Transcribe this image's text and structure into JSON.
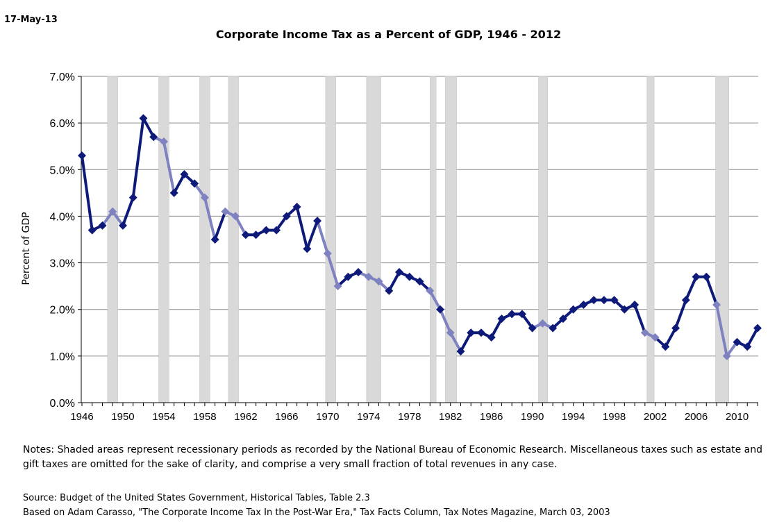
{
  "date_stamp": "17-May-13",
  "chart_data": {
    "type": "line",
    "title": "Corporate Income Tax as a Percent of GDP, 1946 - 2012",
    "ylabel": "Percent of GDP",
    "xlabel": "",
    "ylim": [
      0,
      7
    ],
    "xlim": [
      1946,
      2012
    ],
    "y_ticks": [
      "0.0%",
      "1.0%",
      "2.0%",
      "3.0%",
      "4.0%",
      "5.0%",
      "6.0%",
      "7.0%"
    ],
    "x_ticks": [
      "1946",
      "1950",
      "1954",
      "1958",
      "1962",
      "1966",
      "1970",
      "1974",
      "1978",
      "1982",
      "1986",
      "1990",
      "1994",
      "1998",
      "2002",
      "2006",
      "2010"
    ],
    "grid": true,
    "line_color": "#0D1A7A",
    "recession_line_color": "#7F82C0",
    "recession_shade_color": "#D9D9D9",
    "x": [
      1946,
      1947,
      1948,
      1949,
      1950,
      1951,
      1952,
      1953,
      1954,
      1955,
      1956,
      1957,
      1958,
      1959,
      1960,
      1961,
      1962,
      1963,
      1964,
      1965,
      1966,
      1967,
      1968,
      1969,
      1970,
      1971,
      1972,
      1973,
      1974,
      1975,
      1976,
      1977,
      1978,
      1979,
      1980,
      1981,
      1982,
      1983,
      1984,
      1985,
      1986,
      1987,
      1988,
      1989,
      1990,
      1991,
      1992,
      1993,
      1994,
      1995,
      1996,
      1997,
      1998,
      1999,
      2000,
      2001,
      2002,
      2003,
      2004,
      2005,
      2006,
      2007,
      2008,
      2009,
      2010,
      2011,
      2012
    ],
    "values": [
      5.3,
      3.7,
      3.8,
      4.1,
      3.8,
      4.4,
      6.1,
      5.7,
      5.6,
      4.5,
      4.9,
      4.7,
      4.4,
      3.5,
      4.1,
      4.0,
      3.6,
      3.6,
      3.7,
      3.7,
      4.0,
      4.2,
      3.3,
      3.9,
      3.2,
      2.5,
      2.7,
      2.8,
      2.7,
      2.6,
      2.4,
      2.8,
      2.7,
      2.6,
      2.4,
      2.0,
      1.5,
      1.1,
      1.5,
      1.5,
      1.4,
      1.8,
      1.9,
      1.9,
      1.6,
      1.7,
      1.6,
      1.8,
      2.0,
      2.1,
      2.2,
      2.2,
      2.2,
      2.0,
      2.1,
      1.5,
      1.4,
      1.2,
      1.6,
      2.2,
      2.7,
      2.7,
      2.1,
      1.0,
      1.3,
      1.2,
      1.6
    ],
    "recessions": [
      [
        1948.5,
        1949.5
      ],
      [
        1953.5,
        1954.5
      ],
      [
        1957.5,
        1958.5
      ],
      [
        1960.3,
        1961.3
      ],
      [
        1969.8,
        1970.8
      ],
      [
        1973.8,
        1975.2
      ],
      [
        1980.0,
        1980.6
      ],
      [
        1981.5,
        1982.6
      ],
      [
        1990.6,
        1991.5
      ],
      [
        2001.2,
        2001.9
      ],
      [
        2007.9,
        2009.2
      ]
    ]
  },
  "notes": "Notes:  Shaded areas represent recessionary periods as recorded by the National Bureau of Economic Research.  Miscellaneous taxes such as estate and gift taxes are omitted for the sake of clarity, and comprise a very small fraction of total revenues in any case.",
  "source_line1": "Source:  Budget of the United States Government, Historical Tables, Table 2.3",
  "source_line2": "Based on Adam Carasso, \"The Corporate Income Tax In the Post-War Era,\" Tax Facts Column, Tax Notes Magazine, March 03, 2003"
}
